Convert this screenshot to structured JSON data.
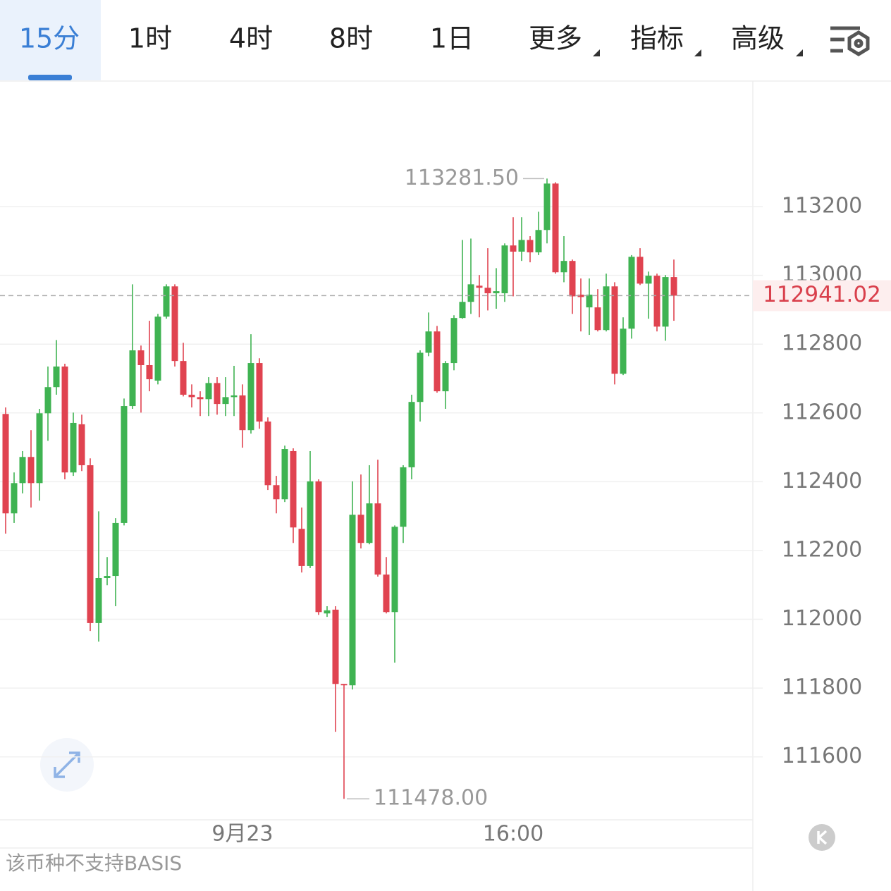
{
  "tabs": [
    "15分",
    "1时",
    "4时",
    "8时",
    "1日",
    "更多",
    "指标",
    "高级"
  ],
  "footer": "该币种不支持BASIS",
  "chart_data": {
    "type": "candlestick",
    "up_color": "#3fb352",
    "down_color": "#e04350",
    "categories": [
      null,
      null,
      null,
      null,
      null,
      null,
      null,
      null,
      null,
      null,
      null,
      null,
      null,
      null,
      null,
      null,
      null,
      null,
      null,
      null,
      null,
      null,
      null,
      null,
      null,
      null,
      null,
      null,
      "9月23",
      null,
      null,
      null,
      null,
      null,
      null,
      null,
      null,
      null,
      null,
      null,
      null,
      null,
      null,
      null,
      null,
      null,
      null,
      null,
      null,
      null,
      null,
      null,
      null,
      null,
      null,
      null,
      null,
      null,
      null,
      null,
      "16:00",
      null,
      null,
      null,
      null,
      null,
      null,
      null,
      null,
      null,
      null,
      null,
      null,
      null,
      null,
      null,
      null,
      null,
      null,
      null
    ],
    "open": [
      112597,
      112308,
      112396,
      112472,
      112396,
      112599,
      112675,
      112735,
      112427,
      112567,
      112448,
      111989,
      112120,
      112126,
      112280,
      112620,
      112782,
      112739,
      112694,
      112880,
      112968,
      112751,
      112653,
      112646,
      112640,
      112687,
      112626,
      112646,
      112651,
      112550,
      112745,
      112575,
      112390,
      112349,
      112489,
      112263,
      112155,
      112401,
      112017,
      112028,
      111812,
      111808,
      112304,
      112222,
      112337,
      112130,
      112021,
      112269,
      112442,
      112632,
      112775,
      112837,
      112663,
      112745,
      112876,
      112923,
      112970,
      112964,
      112948,
      112948,
      113087,
      113069,
      113103,
      113067,
      113132,
      113267,
      113009,
      113042,
      112944,
      112907,
      112907,
      112841,
      112968,
      112714,
      112845,
      113054,
      112976,
      112999,
      112851,
      112995
    ],
    "high": [
      112616,
      112427,
      112489,
      112550,
      112612,
      112735,
      112812,
      112743,
      112601,
      112595,
      112468,
      112314,
      112181,
      112294,
      112642,
      112974,
      112796,
      112868,
      112888,
      112974,
      112974,
      112804,
      112683,
      112663,
      112704,
      112704,
      112704,
      112737,
      112683,
      112829,
      112759,
      112587,
      112417,
      112505,
      112497,
      112325,
      112489,
      112407,
      112038,
      112038,
      111812,
      112401,
      112421,
      112448,
      112464,
      112181,
      112273,
      112448,
      112653,
      112782,
      112892,
      112853,
      112751,
      112884,
      113103,
      113107,
      113001,
      113079,
      113021,
      113093,
      113169,
      113169,
      113114,
      113185,
      113281.5,
      113271,
      113114,
      113046,
      112991,
      112991,
      112960,
      113005,
      112980,
      112878,
      113059,
      113079,
      113011,
      113005,
      113001,
      113046
    ],
    "low": [
      112249,
      112280,
      112366,
      112325,
      112345,
      112519,
      112653,
      112407,
      112417,
      112431,
      111966,
      111935,
      112099,
      112038,
      112273,
      112612,
      112601,
      112663,
      112683,
      112874,
      112735,
      112648,
      112616,
      112591,
      112591,
      112595,
      112591,
      112591,
      112499,
      112540,
      112554,
      112376,
      112308,
      112341,
      112222,
      112136,
      112149,
      112013,
      112007,
      111673,
      111478,
      111796,
      112206,
      112218,
      112124,
      112017,
      111874,
      112222,
      112407,
      112575,
      112765,
      112659,
      112612,
      112724,
      112874,
      112888,
      112878,
      112898,
      112903,
      112923,
      112939,
      113042,
      113038,
      113059,
      113093,
      113005,
      112980,
      112888,
      112837,
      112827,
      112837,
      112837,
      112683,
      112710,
      112816,
      112972,
      112874,
      112837,
      112810,
      112868
    ],
    "close": [
      112308,
      112396,
      112472,
      112396,
      112599,
      112675,
      112735,
      112427,
      112571,
      112448,
      111989,
      112120,
      112126,
      112280,
      112620,
      112782,
      112739,
      112698,
      112880,
      112968,
      112751,
      112653,
      112646,
      112640,
      112687,
      112626,
      112646,
      112651,
      112550,
      112745,
      112575,
      112390,
      112349,
      112495,
      112267,
      112155,
      112401,
      112021,
      112026,
      111812,
      111808,
      112304,
      112222,
      112337,
      112130,
      112021,
      112269,
      112442,
      112632,
      112775,
      112837,
      112663,
      112745,
      112876,
      112923,
      112974,
      112964,
      112948,
      112954,
      113087,
      113069,
      113103,
      113067,
      113132,
      113267,
      113009,
      113042,
      112939,
      112937,
      112944,
      112841,
      112968,
      112714,
      112845,
      113054,
      112976,
      112999,
      112851,
      112995,
      112941.02
    ],
    "ylim": [
      111419,
      113565
    ],
    "yticks": [
      111600,
      111800,
      112000,
      112200,
      112400,
      112600,
      112800,
      113000,
      113200
    ],
    "grid": true,
    "annotations": [
      {
        "value": 113281.5,
        "label": "113281.50"
      },
      {
        "value": 111478,
        "label": "111478.00"
      }
    ]
  }
}
